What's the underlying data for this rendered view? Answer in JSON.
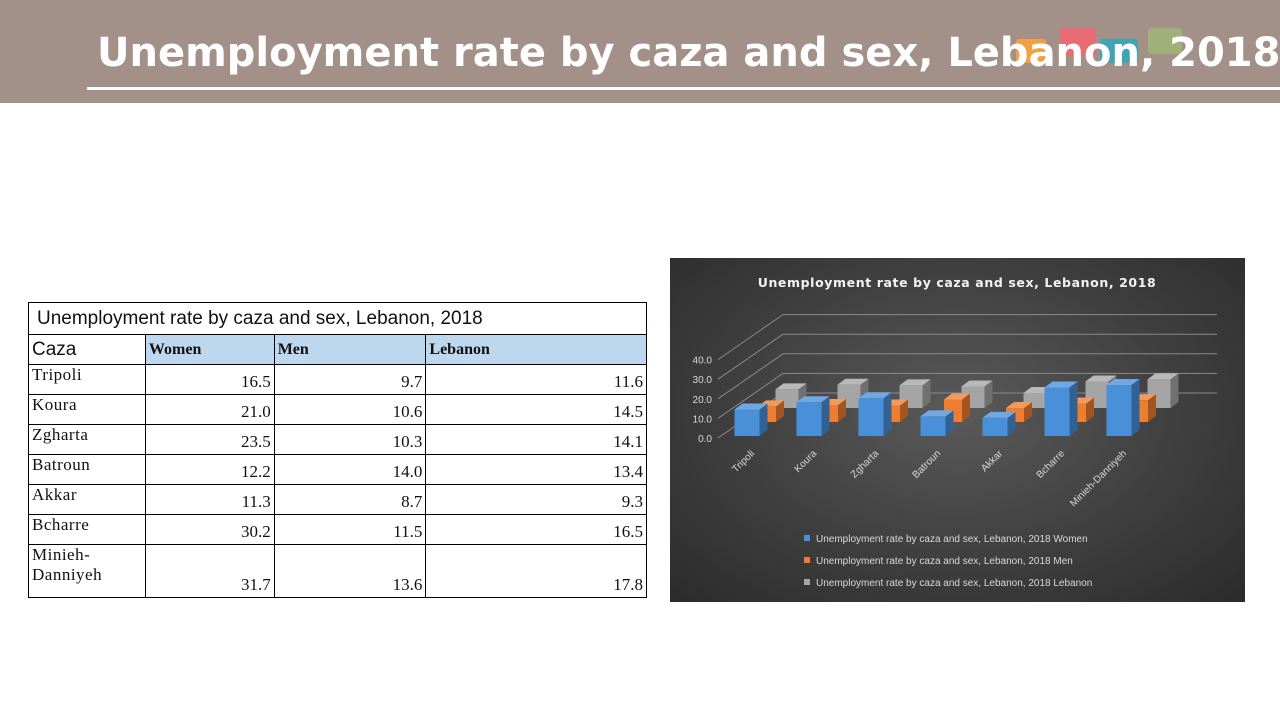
{
  "header": {
    "title": "Unemployment rate by caza and sex, Lebanon, 2018",
    "band_color": "#a39088"
  },
  "table": {
    "caption": "Unemployment rate by caza and sex, Lebanon, 2018",
    "columns": [
      "Caza",
      "Women",
      "Men",
      "Lebanon"
    ],
    "rows": [
      {
        "caza": "Tripoli",
        "women": "16.5",
        "men": "9.7",
        "lebanon": "11.6"
      },
      {
        "caza": "Koura",
        "women": "21.0",
        "men": "10.6",
        "lebanon": "14.5"
      },
      {
        "caza": "Zgharta",
        "women": "23.5",
        "men": "10.3",
        "lebanon": "14.1"
      },
      {
        "caza": "Batroun",
        "women": "12.2",
        "men": "14.0",
        "lebanon": "13.4"
      },
      {
        "caza": "Akkar",
        "women": "11.3",
        "men": "8.7",
        "lebanon": "9.3"
      },
      {
        "caza": "Bcharre",
        "women": "30.2",
        "men": "11.5",
        "lebanon": "16.5"
      },
      {
        "caza": "Minieh-Danniyeh",
        "caza_line1": "Minieh-",
        "caza_line2": "Danniyeh",
        "women": "31.7",
        "men": "13.6",
        "lebanon": "17.8"
      }
    ]
  },
  "chart_data": {
    "type": "bar",
    "title": "Unemployment rate by caza and sex, Lebanon, 2018",
    "categories": [
      "Tripoli",
      "Koura",
      "Zgharta",
      "Batroun",
      "Akkar",
      "Bcharre",
      "Minieh-Danniyeh"
    ],
    "series": [
      {
        "name": "Unemployment rate by caza and sex, Lebanon, 2018 Women",
        "color": "#4a90d9",
        "values": [
          16.5,
          21.0,
          23.5,
          12.2,
          11.3,
          30.2,
          31.7
        ]
      },
      {
        "name": "Unemployment rate by caza and sex, Lebanon, 2018 Men",
        "color": "#ed7d31",
        "values": [
          9.7,
          10.6,
          10.3,
          14.0,
          8.7,
          11.5,
          13.6
        ]
      },
      {
        "name": "Unemployment rate by caza and sex, Lebanon, 2018 Lebanon",
        "color": "#a5a5a5",
        "values": [
          11.6,
          14.5,
          14.1,
          13.4,
          9.3,
          16.5,
          17.8
        ]
      }
    ],
    "y_ticks": [
      "0.0",
      "10.0",
      "20.0",
      "30.0",
      "40.0"
    ],
    "ylim": [
      0,
      40
    ],
    "grid": true,
    "legend_position": "bottom",
    "style": "3d-clustered-column"
  }
}
